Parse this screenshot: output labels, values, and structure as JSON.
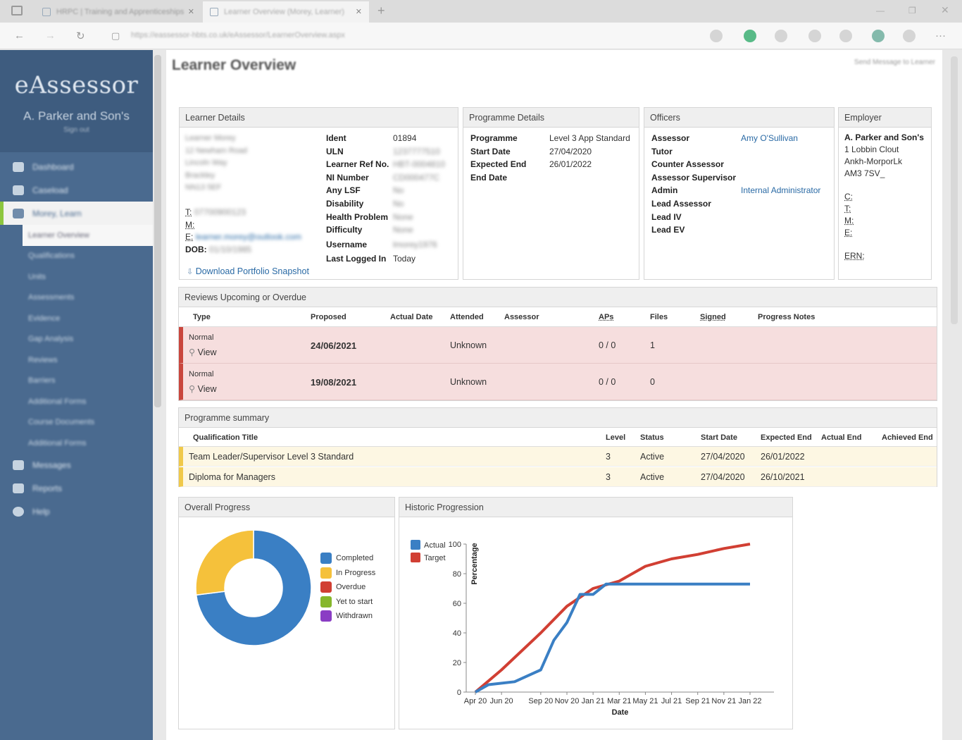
{
  "browser": {
    "tabs": [
      {
        "label": "HRPC | Training and Apprenticeships"
      },
      {
        "label": "Learner Overview (Morey, Learner)"
      }
    ],
    "url": "https://eassessor-hbts.co.uk/eAssessor/LearnerOverview.aspx"
  },
  "sidebar": {
    "brand": "eAssessor",
    "org": "A. Parker and Son's",
    "signout": "Sign out",
    "items": [
      {
        "label": "Dashboard"
      },
      {
        "label": "Caseload"
      },
      {
        "label": "Morey, Learn"
      }
    ],
    "subitems": [
      {
        "label": "Learner Overview"
      },
      {
        "label": "Qualifications"
      },
      {
        "label": "Units"
      },
      {
        "label": "Assessments"
      },
      {
        "label": "Evidence"
      },
      {
        "label": "Gap Analysis"
      },
      {
        "label": "Reviews"
      },
      {
        "label": "Barriers"
      },
      {
        "label": "Additional Forms"
      },
      {
        "label": "Course Documents"
      },
      {
        "label": "Additional Forms"
      }
    ],
    "bottom_items": [
      {
        "label": "Messages"
      },
      {
        "label": "Reports"
      },
      {
        "label": "Help"
      }
    ]
  },
  "page": {
    "title": "Learner Overview",
    "send_message": "Send Message to Learner"
  },
  "learner": {
    "header": "Learner Details",
    "address": [
      "Learner Morey",
      "12 Newham Road",
      "Lincoln Way",
      "Brackley",
      "NN13 5EF"
    ],
    "t_label": "T:",
    "t_value": "07700900123",
    "m_label": "M:",
    "e_label": "E:",
    "e_value": "learner.morey@outlook.com",
    "dob_label": "DOB:",
    "dob_value": "01/10/1985",
    "download": "Download Portfolio Snapshot",
    "fields": [
      {
        "k": "Ident",
        "v": "01894"
      },
      {
        "k": "ULN",
        "v": "1237777510"
      },
      {
        "k": "Learner Ref No.",
        "v": "HBT-0004810"
      },
      {
        "k": "NI Number",
        "v": "CD000477C"
      },
      {
        "k": "Any LSF",
        "v": "No"
      },
      {
        "k": "Disability",
        "v": "No"
      },
      {
        "k": "Health Problem",
        "v": "None"
      },
      {
        "k": "Difficulty",
        "v": "None"
      },
      {
        "k": "Username",
        "v": "lmorey1976"
      },
      {
        "k": "Last Logged In",
        "v": "Today"
      }
    ]
  },
  "programme": {
    "header": "Programme Details",
    "fields": [
      {
        "k": "Programme",
        "v": "Level 3 App Standard"
      },
      {
        "k": "Start Date",
        "v": "27/04/2020"
      },
      {
        "k": "Expected End",
        "v": "26/01/2022"
      },
      {
        "k": "End Date",
        "v": ""
      }
    ]
  },
  "officers": {
    "header": "Officers",
    "fields": [
      {
        "k": "Assessor",
        "v": "Amy O'Sullivan"
      },
      {
        "k": "Tutor",
        "v": ""
      },
      {
        "k": "Counter Assessor",
        "v": ""
      },
      {
        "k": "Assessor Supervisor",
        "v": ""
      },
      {
        "k": "Admin",
        "v": "Internal Administrator"
      },
      {
        "k": "Lead Assessor",
        "v": ""
      },
      {
        "k": "Lead IV",
        "v": ""
      },
      {
        "k": "Lead EV",
        "v": ""
      }
    ]
  },
  "employer": {
    "header": "Employer",
    "name": "A. Parker and Son's",
    "lines": [
      "1 Lobbin Clout",
      "Ankh-MorporLk",
      "AM3 7SV_"
    ],
    "c_label": "C:",
    "t_label": "T:",
    "m_label": "M:",
    "e_label": "E:",
    "ern_label": "ERN:"
  },
  "reviews": {
    "header": "Reviews Upcoming or Overdue",
    "columns": [
      "Type",
      "Proposed",
      "Actual Date",
      "Attended",
      "Assessor",
      "APs",
      "Files",
      "Signed",
      "Progress Notes"
    ],
    "view_label": "View",
    "rows": [
      {
        "type": "Normal",
        "proposed": "24/06/2021",
        "actual": "",
        "attended": "Unknown",
        "assessor": "",
        "aps": "0 / 0",
        "files": "1"
      },
      {
        "type": "Normal",
        "proposed": "19/08/2021",
        "actual": "",
        "attended": "Unknown",
        "assessor": "",
        "aps": "0 / 0",
        "files": "0"
      }
    ]
  },
  "summary": {
    "header": "Programme summary",
    "columns": [
      "Qualification Title",
      "Level",
      "Status",
      "Start Date",
      "Expected End",
      "Actual End",
      "Achieved End"
    ],
    "rows": [
      {
        "title": "Team Leader/Supervisor Level 3 Standard",
        "level": "3",
        "status": "Active",
        "start": "27/04/2020",
        "expected": "26/01/2022",
        "actual": "",
        "achieved": ""
      },
      {
        "title": "Diploma for Managers",
        "level": "3",
        "status": "Active",
        "start": "27/04/2020",
        "expected": "26/10/2021",
        "actual": "",
        "achieved": ""
      }
    ]
  },
  "overall": {
    "header": "Overall Progress"
  },
  "historic": {
    "header": "Historic Progression"
  },
  "chart_data": [
    {
      "type": "pie",
      "style": "donut",
      "slices": [
        {
          "label": "Completed",
          "value": 73,
          "color": "#3a7fc4"
        },
        {
          "label": "In Progress",
          "value": 27,
          "color": "#f5c13b"
        },
        {
          "label": "Overdue",
          "value": 0,
          "color": "#d13f33"
        },
        {
          "label": "Yet to start",
          "value": 0,
          "color": "#86b72b"
        },
        {
          "label": "Withdrawn",
          "value": 0,
          "color": "#8a3dc4"
        }
      ],
      "legend": "right"
    },
    {
      "type": "line",
      "x": [
        "Apr 20",
        "Jun 20",
        "Sep 20",
        "Nov 20",
        "Jan 21",
        "Mar 21",
        "May 21",
        "Jul 21",
        "Sep 21",
        "Nov 21",
        "Jan 22"
      ],
      "xlabel": "Date",
      "ylabel": "Percentage",
      "ylim": [
        0,
        100
      ],
      "yticks": [
        0,
        20,
        40,
        60,
        80,
        100
      ],
      "legend": "top-left",
      "series": [
        {
          "name": "Actual",
          "color": "#3a7fc4",
          "points": [
            [
              "Apr 20",
              0
            ],
            [
              "May 20",
              5
            ],
            [
              "Jul 20",
              7
            ],
            [
              "Sep 20",
              15
            ],
            [
              "Oct 20",
              35
            ],
            [
              "Nov 20",
              47
            ],
            [
              "Dec 20",
              66
            ],
            [
              "Jan 21",
              66
            ],
            [
              "Feb 21",
              73
            ],
            [
              "Apr 21",
              73
            ],
            [
              "Jan 22",
              73
            ]
          ]
        },
        {
          "name": "Target",
          "color": "#d13f33",
          "points": [
            [
              "Apr 20",
              0
            ],
            [
              "Jun 20",
              15
            ],
            [
              "Sep 20",
              40
            ],
            [
              "Nov 20",
              58
            ],
            [
              "Jan 21",
              70
            ],
            [
              "Mar 21",
              75
            ],
            [
              "May 21",
              85
            ],
            [
              "Jul 21",
              90
            ],
            [
              "Sep 21",
              93
            ],
            [
              "Nov 21",
              97
            ],
            [
              "Jan 22",
              100
            ]
          ]
        }
      ]
    }
  ]
}
